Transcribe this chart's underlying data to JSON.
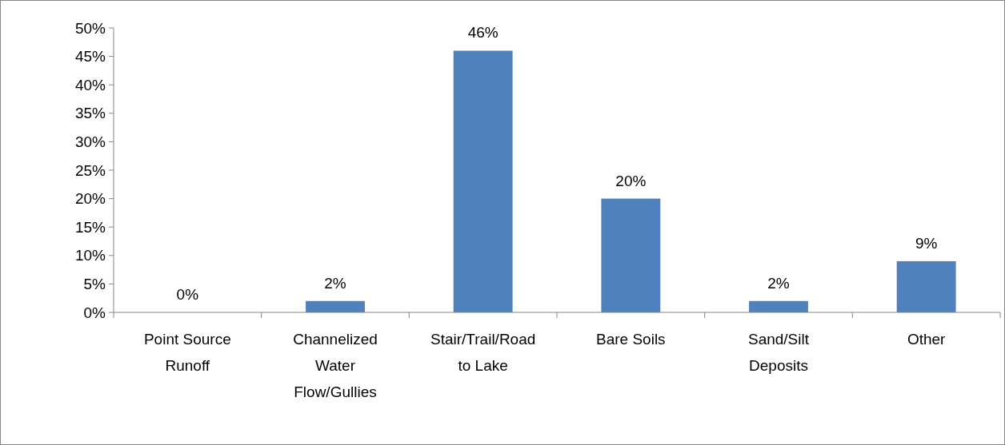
{
  "chart_data": {
    "type": "bar",
    "categories": [
      "Point Source Runoff",
      "Channelized Water Flow/Gullies",
      "Stair/Trail/Road to Lake",
      "Bare Soils",
      "Sand/Silt Deposits",
      "Other"
    ],
    "values": [
      0,
      2,
      46,
      20,
      2,
      9
    ],
    "value_labels": [
      "0%",
      "2%",
      "46%",
      "20%",
      "2%",
      "9%"
    ],
    "color": "#4f81bd",
    "ylim": [
      0,
      50
    ],
    "yticks": [
      {
        "value": 0,
        "label": "0%"
      },
      {
        "value": 5,
        "label": "5%"
      },
      {
        "value": 10,
        "label": "10%"
      },
      {
        "value": 15,
        "label": "15%"
      },
      {
        "value": 20,
        "label": "20%"
      },
      {
        "value": 25,
        "label": "25%"
      },
      {
        "value": 30,
        "label": "30%"
      },
      {
        "value": 35,
        "label": "35%"
      },
      {
        "value": 40,
        "label": "40%"
      },
      {
        "value": 45,
        "label": "45%"
      },
      {
        "value": 50,
        "label": "50%"
      }
    ],
    "grid": false
  }
}
